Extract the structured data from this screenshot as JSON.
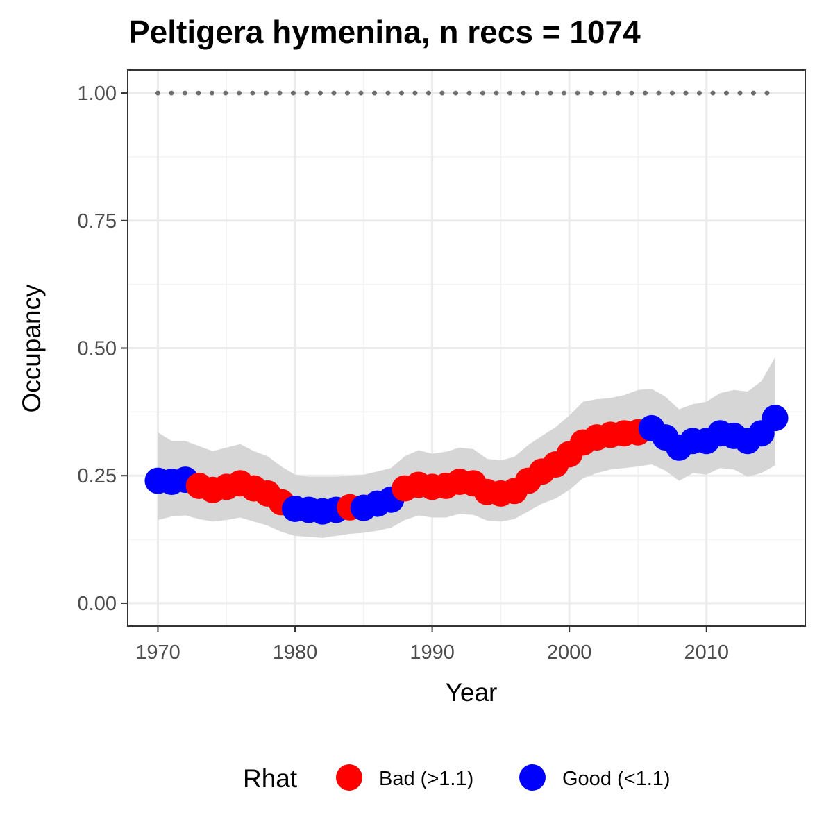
{
  "chart_data": {
    "type": "line",
    "title": "Peltigera hymenina, n recs = 1074",
    "xlabel": "Year",
    "ylabel": "Occupancy",
    "xlim": [
      1967.8,
      2017.2
    ],
    "ylim": [
      -0.045,
      1.045
    ],
    "x_ticks": [
      1970,
      1980,
      1990,
      2000,
      2010
    ],
    "x_tick_labels": [
      "1970",
      "1980",
      "1990",
      "2000",
      "2010"
    ],
    "y_ticks": [
      0.0,
      0.25,
      0.5,
      0.75,
      1.0
    ],
    "y_tick_labels": [
      "0.00",
      "0.25",
      "0.50",
      "0.75",
      "1.00"
    ],
    "grid": true,
    "reference_line": {
      "y": 1.0,
      "style": "dotted",
      "color": "#6e6e6e"
    },
    "colors": {
      "bad": "#ff0000",
      "good": "#0000ff",
      "ribbon": "#d6d6d6"
    },
    "legend": {
      "title": "Rhat",
      "position": "bottom",
      "entries": [
        {
          "key": "bad",
          "label": "Bad (>1.1)"
        },
        {
          "key": "good",
          "label": "Good (<1.1)"
        }
      ]
    },
    "x": [
      1970,
      1971,
      1972,
      1973,
      1974,
      1975,
      1976,
      1977,
      1978,
      1979,
      1980,
      1981,
      1982,
      1983,
      1984,
      1985,
      1986,
      1987,
      1988,
      1989,
      1990,
      1991,
      1992,
      1993,
      1994,
      1995,
      1996,
      1997,
      1998,
      1999,
      2000,
      2001,
      2002,
      2003,
      2004,
      2005,
      2006,
      2007,
      2008,
      2009,
      2010,
      2011,
      2012,
      2013,
      2014,
      2015
    ],
    "y": [
      0.24,
      0.238,
      0.242,
      0.23,
      0.222,
      0.228,
      0.235,
      0.225,
      0.215,
      0.198,
      0.185,
      0.183,
      0.18,
      0.183,
      0.188,
      0.187,
      0.195,
      0.203,
      0.225,
      0.232,
      0.228,
      0.23,
      0.238,
      0.235,
      0.218,
      0.215,
      0.22,
      0.24,
      0.258,
      0.272,
      0.292,
      0.315,
      0.325,
      0.33,
      0.333,
      0.335,
      0.343,
      0.325,
      0.305,
      0.318,
      0.318,
      0.333,
      0.328,
      0.318,
      0.333,
      0.363
    ],
    "lower": [
      0.163,
      0.17,
      0.172,
      0.165,
      0.16,
      0.163,
      0.168,
      0.16,
      0.152,
      0.14,
      0.132,
      0.13,
      0.128,
      0.132,
      0.136,
      0.138,
      0.142,
      0.148,
      0.163,
      0.172,
      0.168,
      0.168,
      0.175,
      0.173,
      0.162,
      0.16,
      0.165,
      0.18,
      0.195,
      0.205,
      0.222,
      0.245,
      0.255,
      0.262,
      0.265,
      0.268,
      0.272,
      0.26,
      0.24,
      0.255,
      0.252,
      0.265,
      0.262,
      0.248,
      0.255,
      0.27
    ],
    "upper": [
      0.335,
      0.318,
      0.318,
      0.308,
      0.298,
      0.305,
      0.312,
      0.298,
      0.288,
      0.268,
      0.252,
      0.248,
      0.248,
      0.248,
      0.25,
      0.252,
      0.258,
      0.265,
      0.288,
      0.3,
      0.293,
      0.297,
      0.305,
      0.302,
      0.283,
      0.28,
      0.287,
      0.31,
      0.328,
      0.345,
      0.368,
      0.395,
      0.4,
      0.402,
      0.408,
      0.418,
      0.42,
      0.405,
      0.38,
      0.39,
      0.395,
      0.412,
      0.418,
      0.415,
      0.435,
      0.482
    ],
    "rhat_status": [
      "good",
      "good",
      "good",
      "bad",
      "bad",
      "bad",
      "bad",
      "bad",
      "bad",
      "bad",
      "good",
      "good",
      "good",
      "good",
      "bad",
      "good",
      "good",
      "good",
      "bad",
      "bad",
      "bad",
      "bad",
      "bad",
      "bad",
      "bad",
      "bad",
      "bad",
      "bad",
      "bad",
      "bad",
      "bad",
      "bad",
      "bad",
      "bad",
      "bad",
      "bad",
      "good",
      "good",
      "good",
      "good",
      "good",
      "good",
      "good",
      "good",
      "good",
      "good"
    ]
  }
}
